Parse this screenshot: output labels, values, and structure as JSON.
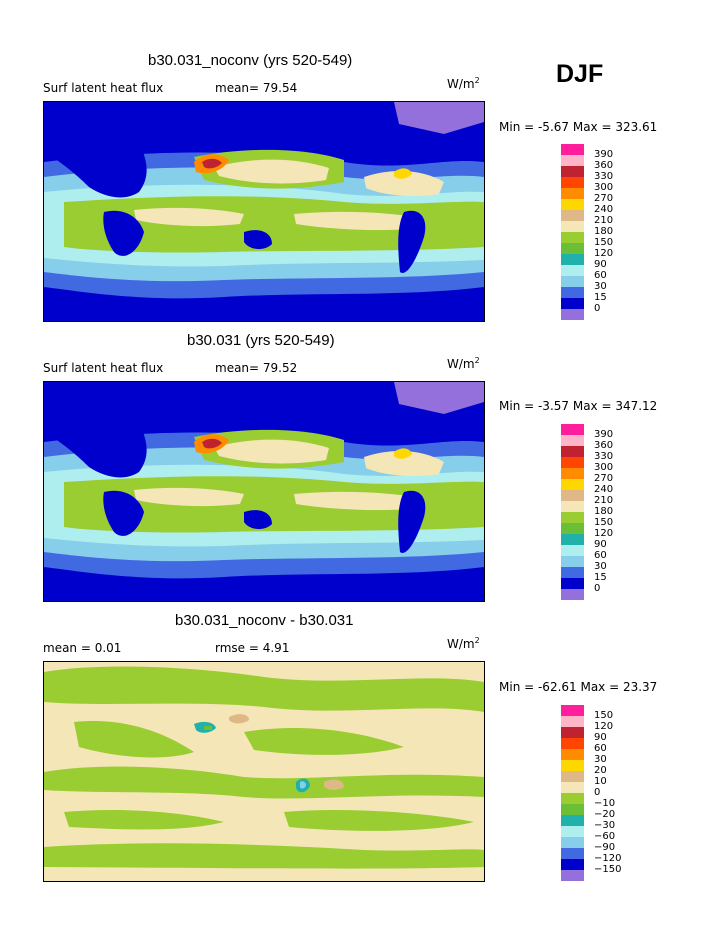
{
  "season": "DJF",
  "units_main": "W/m",
  "units_sup": "2",
  "panels": [
    {
      "title": "b30.031_noconv (yrs 520-549)",
      "label_left": "Surf latent heat flux",
      "label_mean": "mean=  79.54",
      "minmax": "Min =  -5.67 Max = 323.61",
      "levels": [
        "390",
        "360",
        "330",
        "300",
        "270",
        "240",
        "210",
        "180",
        "150",
        "120",
        "90",
        "60",
        "30",
        "15",
        "0"
      ]
    },
    {
      "title": "b30.031 (yrs 520-549)",
      "label_left": "Surf latent heat flux",
      "label_mean": "mean=  79.52",
      "minmax": "Min =  -3.57 Max = 347.12",
      "levels": [
        "390",
        "360",
        "330",
        "300",
        "270",
        "240",
        "210",
        "180",
        "150",
        "120",
        "90",
        "60",
        "30",
        "15",
        "0"
      ]
    },
    {
      "title": "b30.031_noconv - b30.031",
      "label_left": "mean =   0.01",
      "label_mean": "rmse =   4.91",
      "minmax": "Min = -62.61 Max =  23.37",
      "levels": [
        "150",
        "120",
        "90",
        "60",
        "30",
        "20",
        "10",
        "0",
        "−10",
        "−20",
        "−30",
        "−60",
        "−90",
        "−120",
        "−150"
      ]
    }
  ],
  "colors": {
    "scale": [
      "#ff1e9b",
      "#ffb5c8",
      "#bf2332",
      "#ff4500",
      "#ff8c00",
      "#ffd700",
      "#deb887",
      "#f5e6b8",
      "#9acd32",
      "#6bbf36",
      "#20b2aa",
      "#afeeee",
      "#87ceeb",
      "#4169e1",
      "#0000cd",
      "#9370db"
    ]
  }
}
